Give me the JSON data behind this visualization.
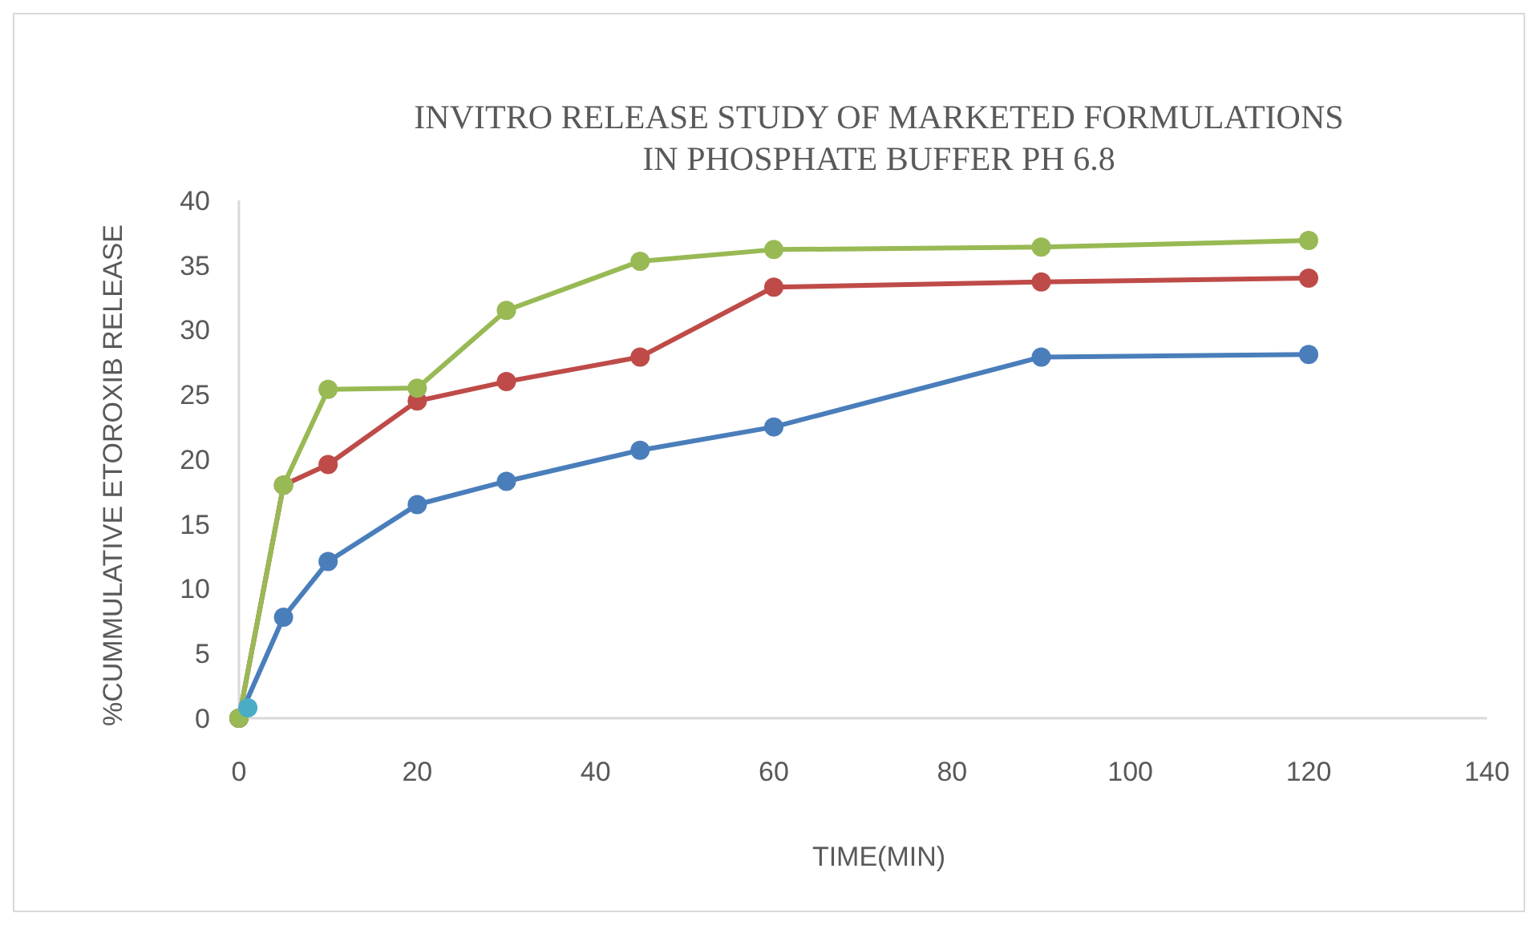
{
  "chart_data": {
    "type": "line",
    "title": "INVITRO RELEASE STUDY OF MARKETED FORMULATIONS\nIN PHOSPHATE BUFFER PH 6.8",
    "xlabel": "TIME(MIN)",
    "ylabel": "%CUMMULATIVE ETOROXIB RELEASE",
    "xlim": [
      0,
      140
    ],
    "xticks": [
      0,
      20,
      40,
      60,
      80,
      100,
      120,
      140
    ],
    "ylim": [
      0,
      40
    ],
    "yticks": [
      0,
      5,
      10,
      15,
      20,
      25,
      30,
      35,
      40
    ],
    "grid": false,
    "marker": "circle",
    "x": [
      0,
      5,
      10,
      20,
      30,
      45,
      60,
      90,
      120
    ],
    "series": [
      {
        "color": "#4a7ebb",
        "values": [
          0,
          7.8,
          12.1,
          16.5,
          18.3,
          20.7,
          22.5,
          27.9,
          28.1
        ]
      },
      {
        "color": "#be4b48",
        "values": [
          0,
          18.0,
          19.6,
          24.5,
          26.0,
          27.9,
          33.3,
          33.7,
          34.0
        ]
      },
      {
        "color": "#98b954",
        "values": [
          0,
          18.0,
          25.4,
          25.5,
          31.5,
          35.3,
          36.2,
          36.4,
          36.9
        ]
      },
      {
        "color": "#4bacc6",
        "x": [
          1
        ],
        "values": [
          0.8
        ]
      }
    ]
  }
}
